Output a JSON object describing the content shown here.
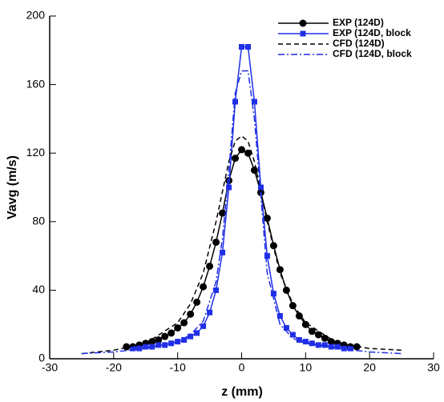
{
  "chart_data": {
    "type": "line",
    "xlabel": "z (mm)",
    "ylabel": "Vavg (m/s)",
    "xlim": [
      -30,
      30
    ],
    "xticks": [
      -30,
      -20,
      -10,
      0,
      10,
      20,
      30
    ],
    "ylim": [
      0,
      200
    ],
    "yticks": [
      0,
      40,
      80,
      120,
      160,
      200
    ],
    "series": [
      {
        "name": "EXP (124D)",
        "color": "#000000",
        "marker": "circle",
        "line_style": "solid",
        "x": [
          -18,
          -17,
          -16,
          -15,
          -14,
          -13,
          -12,
          -11,
          -10,
          -9,
          -8,
          -7,
          -6,
          -5,
          -4,
          -3,
          -2,
          -1,
          0,
          1,
          2,
          3,
          4,
          5,
          6,
          7,
          8,
          9,
          10,
          11,
          12,
          13,
          14,
          15,
          16,
          17,
          18
        ],
        "values": [
          7,
          7,
          8,
          9,
          10,
          11,
          13,
          15,
          18,
          21,
          26,
          33,
          42,
          54,
          68,
          85,
          104,
          117,
          122,
          120,
          110,
          97,
          82,
          66,
          52,
          40,
          31,
          25,
          20,
          16,
          14,
          12,
          10,
          9,
          8,
          7,
          7
        ]
      },
      {
        "name": "EXP (124D, block",
        "color": "#1f2fe6",
        "marker": "square",
        "line_style": "solid",
        "x": [
          -17,
          -16,
          -15,
          -14,
          -13,
          -12,
          -11,
          -10,
          -9,
          -8,
          -7,
          -6,
          -5,
          -4,
          -3,
          -2,
          -1,
          0,
          1,
          2,
          3,
          4,
          5,
          6,
          7,
          8,
          9,
          10,
          11,
          12,
          13,
          14,
          15,
          16,
          17
        ],
        "values": [
          6,
          6,
          7,
          7,
          8,
          8,
          9,
          10,
          11,
          13,
          15,
          19,
          27,
          40,
          62,
          100,
          150,
          182,
          182,
          150,
          100,
          60,
          38,
          25,
          18,
          14,
          11,
          10,
          9,
          8,
          8,
          7,
          7,
          6,
          6
        ]
      },
      {
        "name": "CFD (124D)",
        "color": "#000000",
        "marker": "none",
        "line_style": "dash",
        "x": [
          -25,
          -20,
          -15,
          -10,
          -8,
          -6,
          -4,
          -2,
          -1,
          0,
          1,
          2,
          4,
          6,
          8,
          10,
          15,
          20,
          25
        ],
        "values": [
          3,
          5,
          9,
          21,
          32,
          50,
          80,
          115,
          127,
          130,
          127,
          115,
          80,
          50,
          32,
          21,
          9,
          6,
          5
        ]
      },
      {
        "name": "CFD (124D, block",
        "color": "#1f2fe6",
        "marker": "none",
        "line_style": "dashdot",
        "x": [
          -25,
          -20,
          -15,
          -10,
          -8,
          -6,
          -4,
          -3,
          -2,
          -1,
          0,
          1,
          2,
          3,
          4,
          6,
          8,
          10,
          15,
          20,
          25
        ],
        "values": [
          3,
          4,
          6,
          10,
          14,
          22,
          45,
          70,
          110,
          155,
          168,
          168,
          140,
          95,
          50,
          20,
          12,
          9,
          6,
          4,
          3
        ]
      }
    ]
  }
}
